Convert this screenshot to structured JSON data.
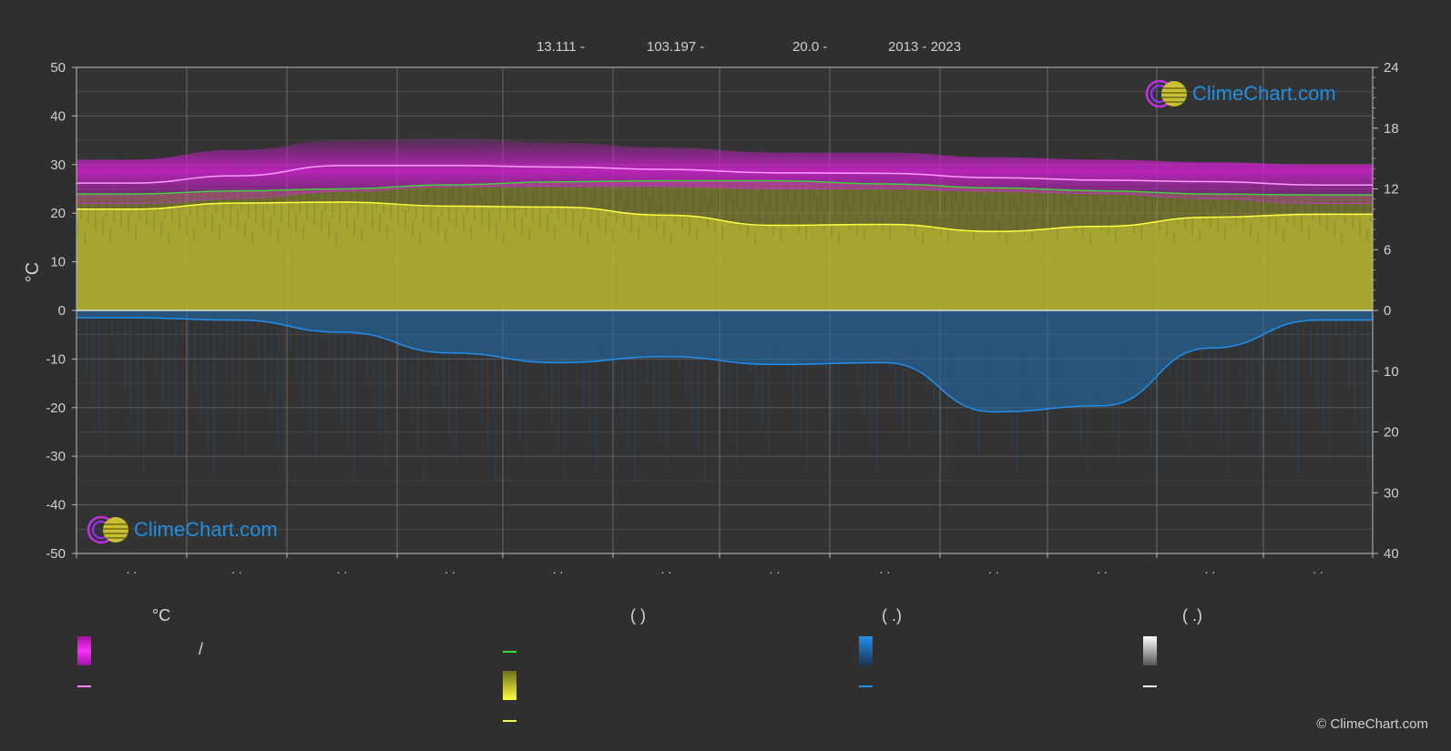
{
  "header": {
    "lat": "13.111 -",
    "lon": "103.197 -",
    "elev": "20.0 -",
    "years": "2013 - 2023"
  },
  "logo_text": "ClimeChart.com",
  "copyright": "© ClimeChart.com",
  "axis_left_label": "°C",
  "legend": {
    "col1_head": "°C",
    "col1_sep": "/",
    "col2_head": "(          )",
    "col3_head": "(    .)",
    "col4_head": "(    .)"
  },
  "colors": {
    "background": "#2f2f2f",
    "temp_range": "#d020d0",
    "temp_mean": "#ff7fff",
    "daylight": "#40d040",
    "sunshine_fill": "#b8b832",
    "sunshine_line": "#ffff40",
    "precip_fill": "#1f6fb0",
    "precip_line": "#2090f0",
    "snow": "#ffffff"
  },
  "chart_data": {
    "type": "area",
    "left_axis": {
      "label": "°C",
      "ylim": [
        -50,
        50
      ],
      "ticks": [
        50,
        40,
        30,
        20,
        10,
        0,
        -10,
        -20,
        -30,
        -40,
        -50
      ]
    },
    "right_axis_top": {
      "ylim": [
        0,
        24
      ],
      "ticks": [
        24,
        18,
        12,
        6,
        0
      ]
    },
    "right_axis_bottom": {
      "ylim": [
        0,
        40
      ],
      "ticks": [
        0,
        10,
        20,
        30,
        40
      ]
    },
    "x_tick_labels": [
      ". .",
      ". .",
      ". .",
      ". .",
      ". .",
      ". .",
      ". .",
      ". .",
      ". .",
      ". .",
      ". .",
      ". ."
    ],
    "months": 12,
    "series": [
      {
        "key": "temp_mean",
        "axis": "celsius",
        "values": [
          26.2,
          27.7,
          29.8,
          29.8,
          29.5,
          29.0,
          28.3,
          28.2,
          27.3,
          26.8,
          26.5,
          25.8
        ]
      },
      {
        "key": "temp_max_band",
        "axis": "celsius",
        "values": [
          31,
          33,
          35,
          35.5,
          34.5,
          33.5,
          32.5,
          32.5,
          31.5,
          31,
          30.5,
          30
        ]
      },
      {
        "key": "temp_min_band",
        "axis": "celsius",
        "values": [
          22,
          23,
          24.5,
          25.5,
          25.5,
          25.5,
          25,
          25,
          24.5,
          24,
          23,
          22
        ]
      },
      {
        "key": "daylight",
        "axis": "hours",
        "values": [
          11.5,
          11.8,
          12.0,
          12.4,
          12.7,
          12.8,
          12.8,
          12.5,
          12.1,
          11.8,
          11.5,
          11.4
        ]
      },
      {
        "key": "sunshine",
        "axis": "hours",
        "values": [
          10.0,
          10.6,
          10.7,
          10.3,
          10.2,
          9.4,
          8.4,
          8.5,
          7.8,
          8.3,
          9.2,
          9.5
        ]
      },
      {
        "key": "precipitation",
        "axis": "mm_per_day",
        "values": [
          1.2,
          1.6,
          3.6,
          7.0,
          8.6,
          7.6,
          8.9,
          8.6,
          16.7,
          15.7,
          6.2,
          1.6
        ]
      }
    ]
  }
}
